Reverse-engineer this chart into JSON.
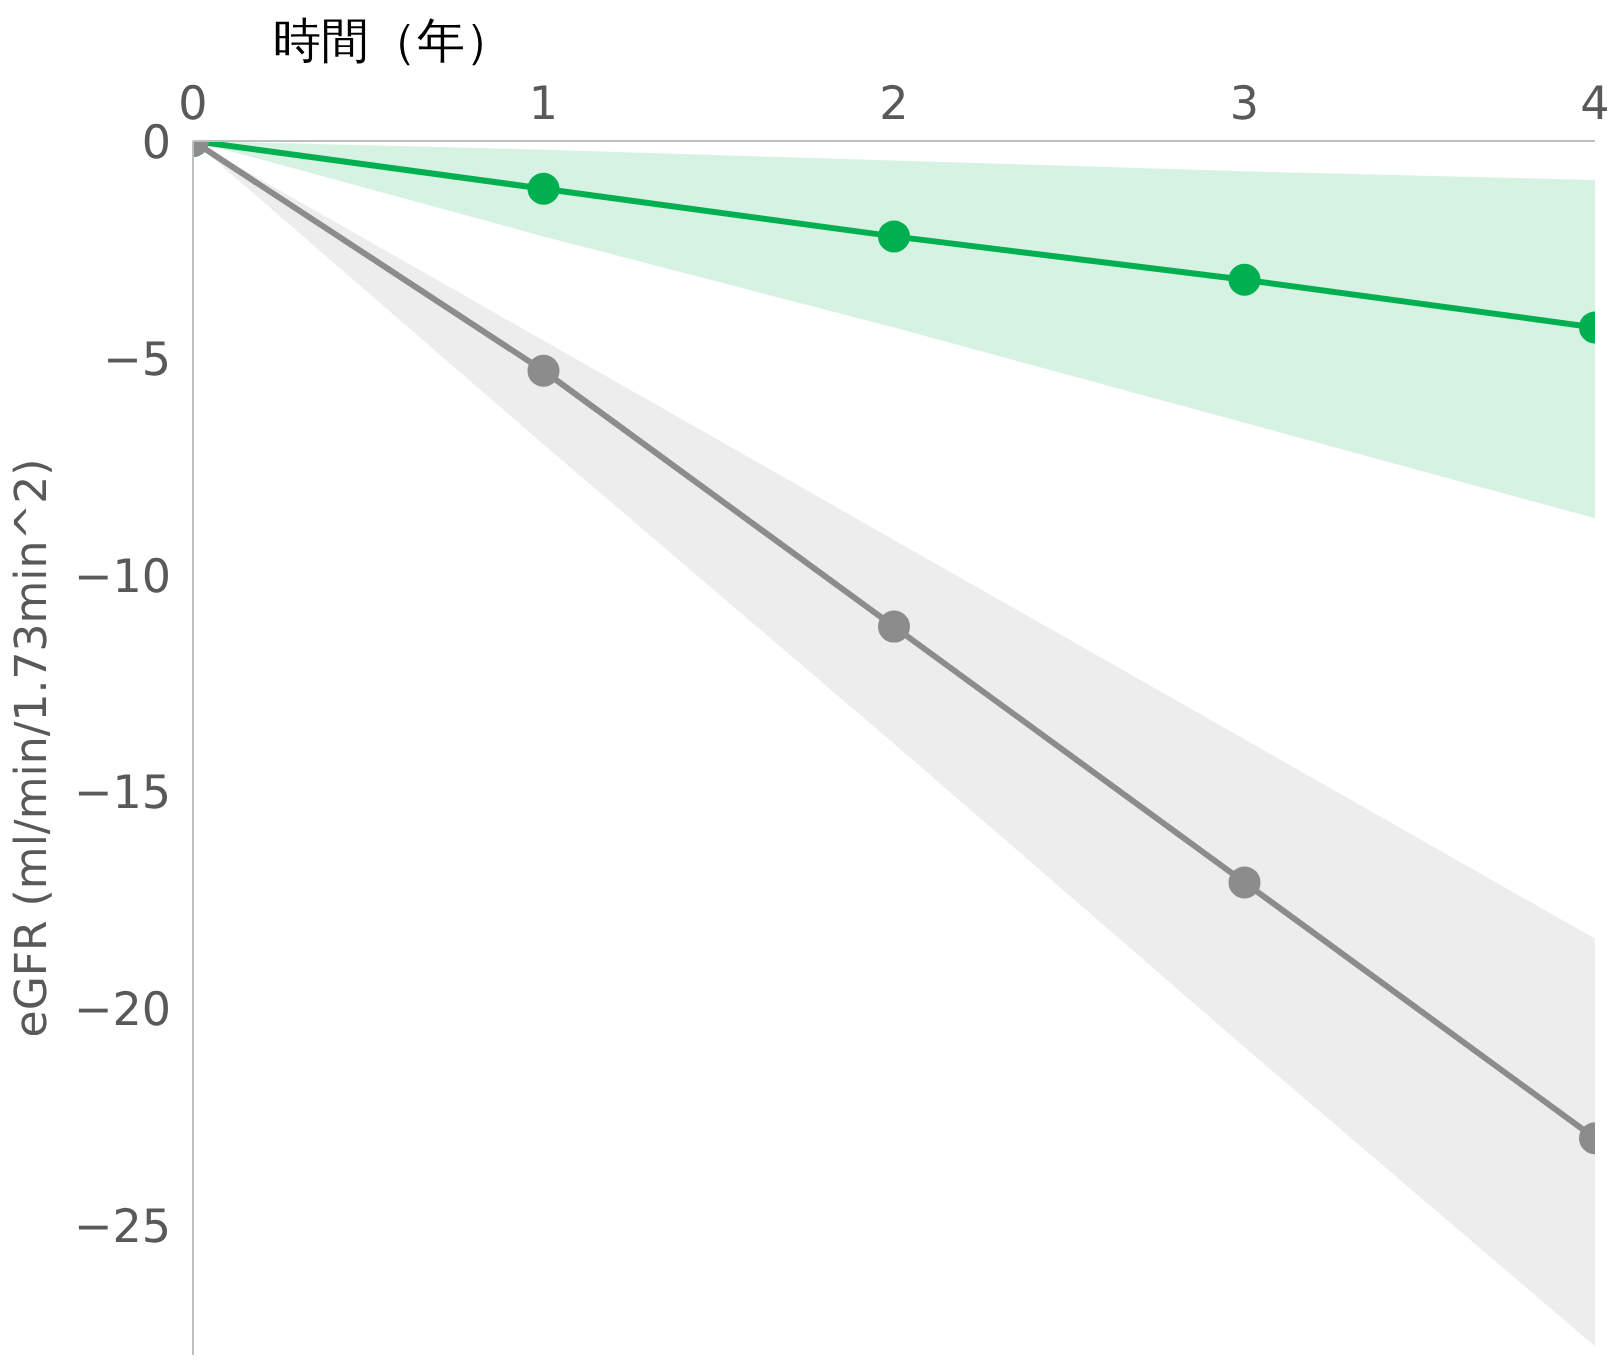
{
  "chart_data": {
    "type": "line",
    "xlabel": "時間（年）",
    "ylabel": "eGFR (ml/min/1.73min^2)",
    "x": [
      0,
      1,
      2,
      3,
      4
    ],
    "series": [
      {
        "color": "#00b050",
        "values": [
          0,
          -1.1,
          -2.2,
          -3.2,
          -4.3
        ],
        "lower": [
          0,
          -2.2,
          -4.3,
          -6.5,
          -8.7
        ],
        "upper": [
          0,
          -0.2,
          -0.45,
          -0.7,
          -0.9
        ]
      },
      {
        "color": "#8c8c8c",
        "values": [
          0,
          -5.3,
          -11.2,
          -17.1,
          -23.0
        ],
        "lower": [
          0,
          -7.0,
          -13.9,
          -20.9,
          -27.8
        ],
        "upper": [
          0,
          -4.6,
          -9.2,
          -13.8,
          -18.4
        ]
      }
    ],
    "xlim": [
      0,
      4
    ],
    "xticks": [
      0,
      1,
      2,
      3,
      4
    ],
    "ylim": [
      -28,
      0
    ],
    "yticks": [
      0,
      -5,
      -10,
      -15,
      -20,
      -25
    ],
    "grid": false,
    "marker": "circle",
    "line_style": "solid"
  }
}
